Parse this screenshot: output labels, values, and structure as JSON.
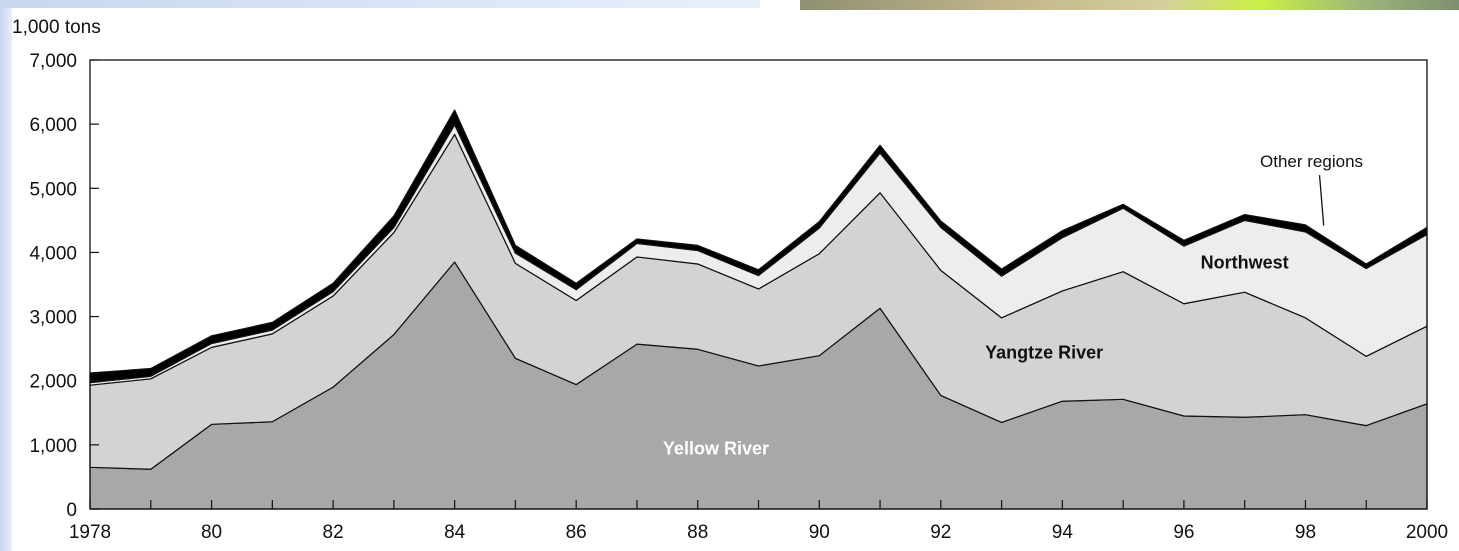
{
  "chart_data": {
    "type": "area",
    "stacked": true,
    "unit_label": "1,000 tons",
    "x": [
      1978,
      1979,
      1980,
      1981,
      1982,
      1983,
      1984,
      1985,
      1986,
      1987,
      1988,
      1989,
      1990,
      1991,
      1992,
      1993,
      1994,
      1995,
      1996,
      1997,
      1998,
      1999,
      2000
    ],
    "x_tick_labels": [
      "1978",
      "80",
      "82",
      "84",
      "86",
      "88",
      "90",
      "92",
      "94",
      "96",
      "98",
      "2000"
    ],
    "x_tick_values": [
      1978,
      1980,
      1982,
      1984,
      1986,
      1988,
      1990,
      1992,
      1994,
      1996,
      1998,
      2000
    ],
    "ylim": [
      0,
      7000
    ],
    "y_ticks": [
      0,
      1000,
      2000,
      3000,
      4000,
      5000,
      6000,
      7000
    ],
    "y_tick_labels": [
      "0",
      "1,000",
      "2,000",
      "3,000",
      "4,000",
      "5,000",
      "6,000",
      "7,000"
    ],
    "grid": false,
    "series": [
      {
        "name": "Yellow River",
        "color": "#a8a8a8",
        "values": [
          650,
          620,
          1320,
          1360,
          1900,
          2720,
          3850,
          2350,
          1940,
          2570,
          2490,
          2230,
          2390,
          3130,
          1770,
          1350,
          1680,
          1710,
          1450,
          1430,
          1470,
          1300,
          1640
        ]
      },
      {
        "name": "Yangtze River",
        "color": "#d3d3d3",
        "values": [
          1280,
          1410,
          1200,
          1370,
          1420,
          1590,
          1990,
          1480,
          1310,
          1360,
          1330,
          1200,
          1590,
          1800,
          1950,
          1630,
          1720,
          1990,
          1750,
          1950,
          1510,
          1080,
          1210
        ]
      },
      {
        "name": "Northwest",
        "color": "#ededed",
        "values": [
          40,
          40,
          60,
          60,
          70,
          80,
          150,
          160,
          170,
          210,
          210,
          210,
          400,
          620,
          670,
          650,
          830,
          990,
          900,
          1120,
          1340,
          1370,
          1430
        ]
      },
      {
        "name": "Other regions",
        "color": "#000000",
        "values": [
          150,
          120,
          120,
          120,
          130,
          180,
          230,
          120,
          100,
          70,
          80,
          90,
          100,
          120,
          100,
          110,
          110,
          60,
          90,
          90,
          110,
          70,
          110
        ]
      }
    ],
    "annotations": [
      {
        "text": "Yellow River",
        "x": 1988.3,
        "y": 850,
        "color": "#ffffff"
      },
      {
        "text": "Yangtze River",
        "x": 1993.7,
        "y": 2350,
        "color": "#111111"
      },
      {
        "text": "Northwest",
        "x": 1997.0,
        "y": 3750,
        "color": "#111111"
      },
      {
        "text": "Other regions",
        "x": 1998.1,
        "y": 5330,
        "color": "#111111",
        "pointer_to": [
          1998.3,
          4420
        ]
      }
    ]
  }
}
